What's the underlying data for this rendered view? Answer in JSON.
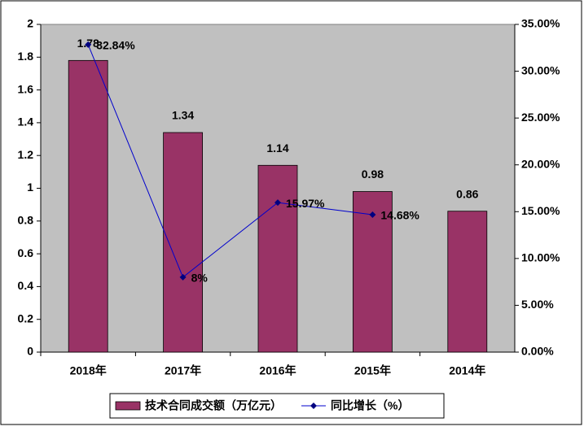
{
  "chart_data": {
    "type": "bar_line",
    "categories": [
      "2018年",
      "2017年",
      "2016年",
      "2015年",
      "2014年"
    ],
    "series": [
      {
        "name": "技术合同成交额（万亿元）",
        "color": "#993366",
        "type": "bar",
        "values": [
          1.78,
          1.34,
          1.14,
          0.98,
          0.86
        ]
      },
      {
        "name": "同比增长（%）",
        "color": "#000080",
        "type": "line",
        "axis": "y2",
        "values": [
          32.84,
          8,
          15.97,
          14.68,
          null
        ],
        "value_labels": [
          "32.84%",
          "8%",
          "15.97%",
          "14.68%",
          null
        ]
      }
    ],
    "ylim": [
      0,
      2
    ],
    "yticks": [
      0,
      0.2,
      0.4,
      0.6,
      0.8,
      1,
      1.2,
      1.4,
      1.6,
      1.8,
      2
    ],
    "y2lim": [
      0,
      35
    ],
    "y2ticks": [
      {
        "value": 0,
        "label": "0.00%"
      },
      {
        "value": 5,
        "label": "5.00%"
      },
      {
        "value": 10,
        "label": "10.00%"
      },
      {
        "value": 15,
        "label": "15.00%"
      },
      {
        "value": 20,
        "label": "20.00%"
      },
      {
        "value": 25,
        "label": "25.00%"
      },
      {
        "value": 30,
        "label": "30.00%"
      },
      {
        "value": 35,
        "label": "35.00%"
      }
    ],
    "legend": "bottom"
  }
}
